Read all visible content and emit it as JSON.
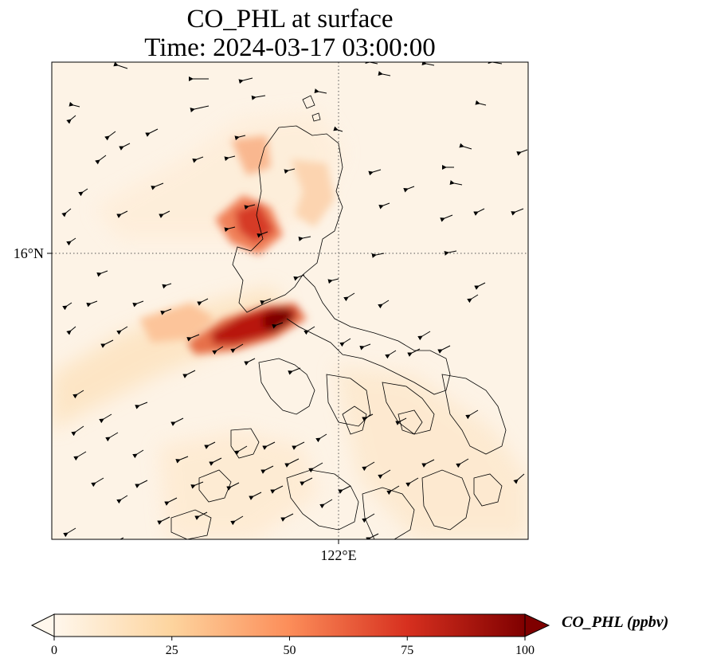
{
  "title": {
    "line1": "CO_PHL at surface",
    "line2": "Time: 2024-03-17 03:00:00"
  },
  "map": {
    "lat_label": "16°N",
    "lon_label": "122°E",
    "gridline_style": "dotted",
    "colormap": "OrRd"
  },
  "colorbar": {
    "label": "CO_PHL (ppbv)",
    "ticks": [
      "0",
      "25",
      "50",
      "75",
      "100"
    ],
    "min": 0,
    "max": 100,
    "extend": "both",
    "colors": [
      "#fff7ec",
      "#fdd49e",
      "#fc8d59",
      "#d7301f",
      "#7f0000"
    ]
  },
  "chart_data": {
    "type": "heatmap",
    "variable": "CO_PHL",
    "units": "ppbv",
    "level": "surface",
    "time": "2024-03-17 03:00:00",
    "gridlines": {
      "lat": [
        "16°N"
      ],
      "lon": [
        "122°E"
      ]
    },
    "colorbar_range": [
      0,
      100
    ]
  }
}
